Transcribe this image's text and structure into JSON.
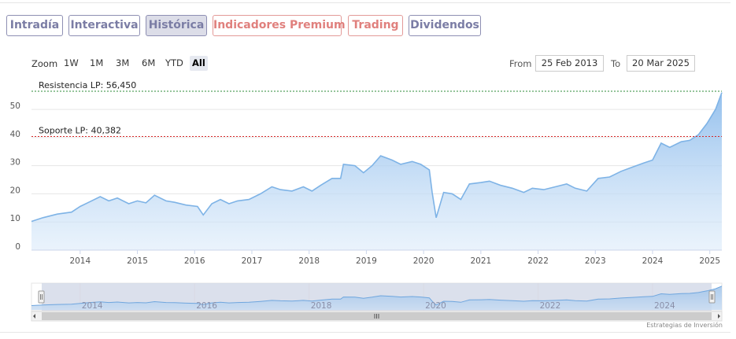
{
  "tabs": [
    {
      "label": "Intradía",
      "style": "purple"
    },
    {
      "label": "Interactiva",
      "style": "purple"
    },
    {
      "label": "Histórica",
      "style": "active"
    },
    {
      "label": "Indicadores Premium",
      "style": "red"
    },
    {
      "label": "Trading",
      "style": "red"
    },
    {
      "label": "Dividendos",
      "style": "purple"
    }
  ],
  "zoom": {
    "label": "Zoom",
    "options": [
      "1W",
      "1M",
      "3M",
      "6M",
      "YTD",
      "All"
    ],
    "selected": "All"
  },
  "range": {
    "from_label": "From",
    "from_value": "25 Feb 2013",
    "to_label": "To",
    "to_value": "20 Mar 2025"
  },
  "credit": "Estrategias de Inversión",
  "chart_data": {
    "type": "area",
    "x_start": "2013-02-25",
    "x_end": "2025-03-20",
    "ylim": [
      0,
      56.45
    ],
    "y_ticks": [
      0,
      10,
      20,
      30,
      40,
      50
    ],
    "x_ticks": [
      "2014",
      "2015",
      "2016",
      "2017",
      "2018",
      "2019",
      "2020",
      "2021",
      "2022",
      "2023",
      "2024",
      "2025"
    ],
    "navigator_ticks": [
      "2014",
      "2016",
      "2018",
      "2020",
      "2022",
      "2024"
    ],
    "grid": true,
    "line_color": "#7eb3e6",
    "fill_color": "#b9d6f3",
    "annotations": [
      {
        "label": "Resistencia LP: 56,450",
        "value": 56.45,
        "color": "#2e8b3a"
      },
      {
        "label": "Soporte LP: 40,382",
        "value": 40.382,
        "color": "#d62828"
      }
    ],
    "series": [
      {
        "x": [
          2013.15,
          2013.35,
          2013.6,
          2013.85,
          2014.0,
          2014.15,
          2014.35,
          2014.5,
          2014.65,
          2014.85,
          2015.0,
          2015.15,
          2015.3,
          2015.5,
          2015.65,
          2015.85,
          2016.05,
          2016.15,
          2016.3,
          2016.45,
          2016.6,
          2016.75,
          2016.95,
          2017.15,
          2017.35,
          2017.5,
          2017.7,
          2017.9,
          2018.05,
          2018.2,
          2018.4,
          2018.55,
          2018.6,
          2018.8,
          2018.95,
          2019.1,
          2019.25,
          2019.45,
          2019.6,
          2019.8,
          2019.95,
          2020.1,
          2020.15,
          2020.22,
          2020.35,
          2020.5,
          2020.65,
          2020.8,
          2021.0,
          2021.15,
          2021.35,
          2021.55,
          2021.75,
          2021.9,
          2022.1,
          2022.3,
          2022.5,
          2022.65,
          2022.85,
          2023.05,
          2023.25,
          2023.45,
          2023.65,
          2023.85,
          2024.0,
          2024.15,
          2024.3,
          2024.5,
          2024.65,
          2024.8,
          2024.95,
          2025.1,
          2025.21
        ],
        "y": [
          10.2,
          11.5,
          12.8,
          13.5,
          15.5,
          17.0,
          19.0,
          17.5,
          18.5,
          16.5,
          17.5,
          16.8,
          19.5,
          17.5,
          17.0,
          16.0,
          15.5,
          12.5,
          16.5,
          18.0,
          16.5,
          17.5,
          18.0,
          20.0,
          22.5,
          21.5,
          21.0,
          22.5,
          21.0,
          23.0,
          25.5,
          25.5,
          30.5,
          30.0,
          27.5,
          30.0,
          33.5,
          32.0,
          30.5,
          31.5,
          30.5,
          28.5,
          20.5,
          11.5,
          20.5,
          20.0,
          18.0,
          23.5,
          24.0,
          24.5,
          23.0,
          22.0,
          20.5,
          22.0,
          21.5,
          22.5,
          23.5,
          22.0,
          21.0,
          25.5,
          26.0,
          28.0,
          29.5,
          31.0,
          32.0,
          38.0,
          36.5,
          38.5,
          39.0,
          41.0,
          45.0,
          50.0,
          56.0
        ]
      }
    ]
  }
}
